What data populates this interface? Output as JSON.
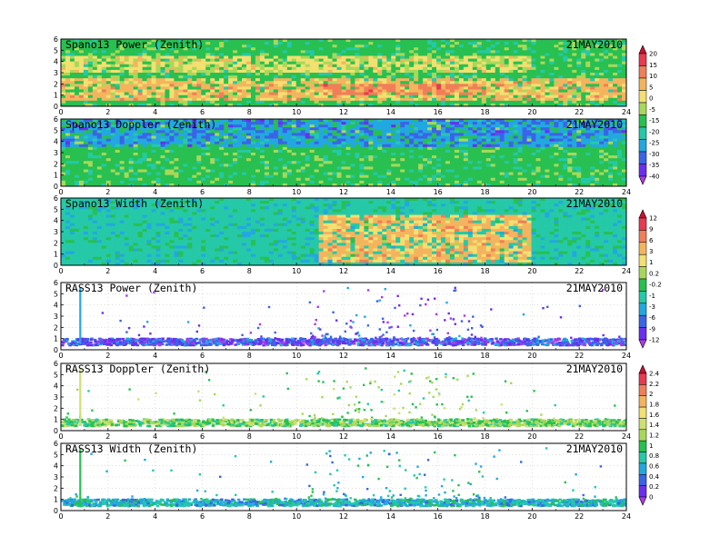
{
  "figure": {
    "date_label": "21MAY2010"
  },
  "chart_data": [
    {
      "type": "heatmap",
      "title": "Spano13 Power (Zenith)",
      "date": "21MAY2010",
      "x_ticks": [
        "0",
        "2",
        "4",
        "6",
        "8",
        "10",
        "12",
        "14",
        "16",
        "18",
        "20",
        "22",
        "24"
      ],
      "y_ticks": [
        "0",
        "1",
        "2",
        "3",
        "4",
        "5",
        "6"
      ],
      "xlim": [
        0,
        24
      ],
      "ylim": [
        0,
        6
      ],
      "colorbar_group": "A",
      "base_level": "-15",
      "features": [
        {
          "band": "enhanced power layer",
          "x": [
            0,
            24
          ],
          "y": [
            0.6,
            2.6
          ],
          "level": "5"
        },
        {
          "band": "peak layer near 14h",
          "x": [
            11,
            18
          ],
          "y": [
            0.9,
            1.9
          ],
          "level": "10"
        },
        {
          "band": "upper layer",
          "x": [
            0,
            20
          ],
          "y": [
            3.0,
            4.6
          ],
          "level": "0"
        }
      ]
    },
    {
      "type": "heatmap",
      "title": "Spano13 Doppler (Zenith)",
      "date": "21MAY2010",
      "x_ticks": [
        "0",
        "2",
        "4",
        "6",
        "8",
        "10",
        "12",
        "14",
        "16",
        "18",
        "20",
        "22",
        "24"
      ],
      "y_ticks": [
        "0",
        "1",
        "2",
        "3",
        "4",
        "5",
        "6"
      ],
      "xlim": [
        0,
        24
      ],
      "ylim": [
        0,
        6
      ],
      "colorbar_group": "A",
      "base_level": "-15",
      "features": [
        {
          "band": "upper cyan region",
          "x": [
            0,
            24
          ],
          "y": [
            3.6,
            6.0
          ],
          "level": "-25"
        }
      ]
    },
    {
      "type": "heatmap",
      "title": "Spano13 Width (Zenith)",
      "date": "21MAY2010",
      "x_ticks": [
        "0",
        "2",
        "4",
        "6",
        "8",
        "10",
        "12",
        "14",
        "16",
        "18",
        "20",
        "22",
        "24"
      ],
      "y_ticks": [
        "0",
        "1",
        "2",
        "3",
        "4",
        "5",
        "6"
      ],
      "xlim": [
        0,
        24
      ],
      "ylim": [
        0,
        6
      ],
      "colorbar_group": "B",
      "base_level": "-1",
      "features": [
        {
          "band": "broad width patches",
          "x": [
            11,
            20
          ],
          "y": [
            0.3,
            4.6
          ],
          "level": "3"
        }
      ]
    },
    {
      "type": "scatter",
      "title": "RASS13 Power (Zenith)",
      "date": "21MAY2010",
      "x_ticks": [
        "0",
        "2",
        "4",
        "6",
        "8",
        "10",
        "12",
        "14",
        "16",
        "18",
        "20",
        "22",
        "24"
      ],
      "y_ticks": [
        "0",
        "1",
        "2",
        "3",
        "4",
        "5",
        "6"
      ],
      "xlim": [
        0,
        24
      ],
      "ylim": [
        0,
        6
      ],
      "colorbar_group": "B",
      "base_level": "-9",
      "features": [
        {
          "band": "RASS return layer",
          "x": [
            0,
            24
          ],
          "y": [
            0.5,
            1.1
          ],
          "level": "-9"
        }
      ]
    },
    {
      "type": "scatter",
      "title": "RASS13 Doppler (Zenith)",
      "date": "21MAY2010",
      "x_ticks": [
        "0",
        "2",
        "4",
        "6",
        "8",
        "10",
        "12",
        "14",
        "16",
        "18",
        "20",
        "22",
        "24"
      ],
      "y_ticks": [
        "0",
        "1",
        "2",
        "3",
        "4",
        "5",
        "6"
      ],
      "xlim": [
        0,
        24
      ],
      "ylim": [
        0,
        6
      ],
      "colorbar_group": "C",
      "base_level": "1",
      "features": [
        {
          "band": "RASS return layer",
          "x": [
            0,
            24
          ],
          "y": [
            0.5,
            1.1
          ],
          "level": "1"
        }
      ]
    },
    {
      "type": "scatter",
      "title": "RASS13 Width (Zenith)",
      "date": "21MAY2010",
      "x_ticks": [
        "0",
        "2",
        "4",
        "6",
        "8",
        "10",
        "12",
        "14",
        "16",
        "18",
        "20",
        "22",
        "24"
      ],
      "y_ticks": [
        "0",
        "1",
        "2",
        "3",
        "4",
        "5",
        "6"
      ],
      "xlim": [
        0,
        24
      ],
      "ylim": [
        0,
        6
      ],
      "colorbar_group": "C",
      "base_level": "0.6",
      "features": [
        {
          "band": "RASS return layer",
          "x": [
            0,
            24
          ],
          "y": [
            0.5,
            1.1
          ],
          "level": "0.6"
        }
      ]
    }
  ],
  "colorbars": {
    "A": {
      "labels": [
        "20",
        "15",
        "10",
        "5",
        "0",
        "-5",
        "-15",
        "-20",
        "-25",
        "-30",
        "-35",
        "-40"
      ],
      "colors": [
        "#cc1030",
        "#e83a50",
        "#f07e58",
        "#f4b45e",
        "#f2e070",
        "#a8d85a",
        "#28c050",
        "#25c9a8",
        "#22a8e0",
        "#3a64e8",
        "#6a2ff0",
        "#a93ce8"
      ]
    },
    "B": {
      "labels": [
        "12",
        "9",
        "6",
        "3",
        "1",
        "0.2",
        "-0.2",
        "-1",
        "-3",
        "-6",
        "-9",
        "-12"
      ],
      "colors": [
        "#cc1030",
        "#e83a50",
        "#f07e58",
        "#f4b45e",
        "#f2e070",
        "#a8d85a",
        "#28c050",
        "#25c9a8",
        "#22a8e0",
        "#3a64e8",
        "#6a2ff0",
        "#a93ce8"
      ]
    },
    "C": {
      "labels": [
        "2.4",
        "2.2",
        "2",
        "1.8",
        "1.6",
        "1.4",
        "1.2",
        "1",
        "0.8",
        "0.6",
        "0.4",
        "0.2",
        "0"
      ],
      "colors": [
        "#cc1030",
        "#e83a50",
        "#f07e58",
        "#f4b45e",
        "#f2e070",
        "#cfe070",
        "#a8d85a",
        "#28c050",
        "#25c9a8",
        "#22a8e0",
        "#3a64e8",
        "#6a2ff0",
        "#a93ce8"
      ]
    }
  }
}
